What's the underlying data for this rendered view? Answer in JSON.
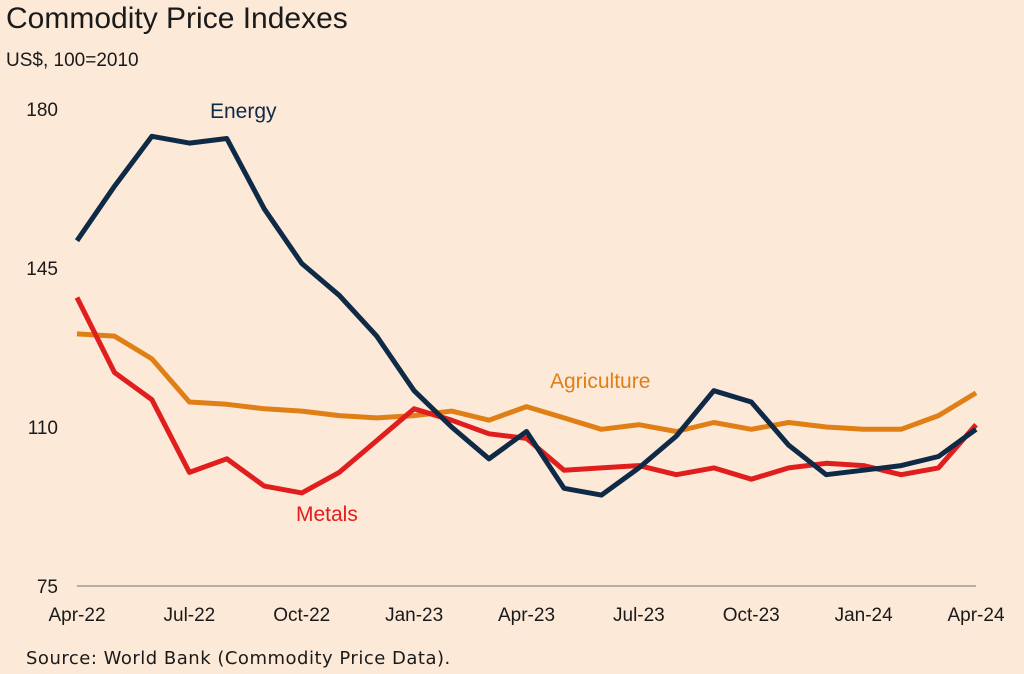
{
  "chart_data": {
    "type": "line",
    "title": "Commodity Price Indexes",
    "subtitle": "US$, 100=2010",
    "xlabel": "",
    "ylabel": "",
    "ylim": [
      75,
      180
    ],
    "yticks": [
      "180",
      "145",
      "110",
      "75"
    ],
    "xticks": [
      "Apr-22",
      "Jul-22",
      "Oct-22",
      "Jan-23",
      "Apr-23",
      "Jul-23",
      "Oct-23",
      "Jan-24",
      "Apr-24"
    ],
    "x": [
      "Apr-22",
      "May-22",
      "Jun-22",
      "Jul-22",
      "Aug-22",
      "Sep-22",
      "Oct-22",
      "Nov-22",
      "Dec-22",
      "Jan-23",
      "Feb-23",
      "Mar-23",
      "Apr-23",
      "May-23",
      "Jun-23",
      "Jul-23",
      "Aug-23",
      "Sep-23",
      "Oct-23",
      "Nov-23",
      "Dec-23",
      "Jan-24",
      "Feb-24",
      "Mar-24",
      "Apr-24"
    ],
    "grid": false,
    "source": "Source: World Bank (Commodity Price Data).",
    "series": [
      {
        "name": "Energy",
        "color": "#0f2a47",
        "values": [
          151,
          163,
          174,
          172.5,
          173.5,
          158,
          146,
          139,
          130,
          118,
          110,
          103,
          109,
          96.5,
          95,
          101,
          108,
          118,
          115.5,
          106,
          99.5,
          100.5,
          101.5,
          103.5,
          109.5
        ]
      },
      {
        "name": "Agriculture",
        "color": "#df7f16",
        "values": [
          130.5,
          130,
          125,
          115.5,
          115,
          114,
          113.5,
          112.5,
          112,
          112.5,
          113.5,
          111.5,
          114.5,
          112,
          109.5,
          110.5,
          109,
          111,
          109.5,
          111,
          110,
          109.5,
          109.5,
          112.5,
          117.5
        ]
      },
      {
        "name": "Metals",
        "color": "#e01e1e",
        "values": [
          138.5,
          122,
          116,
          100,
          103,
          97,
          95.5,
          100,
          107,
          114,
          111.5,
          108.5,
          107.5,
          100.5,
          101,
          101.5,
          99.5,
          101,
          98.5,
          101,
          102,
          101.5,
          99.5,
          101,
          110.5
        ]
      }
    ]
  }
}
